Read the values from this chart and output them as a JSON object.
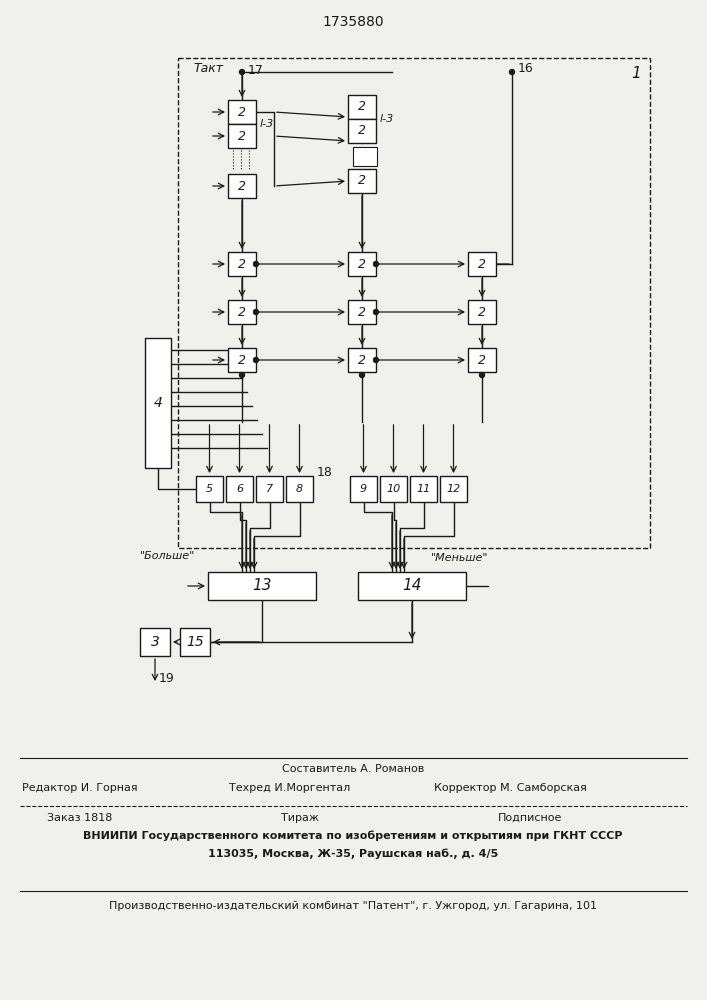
{
  "title": "1735880",
  "bg_color": "#f0f0ec",
  "line_color": "#1a1a1a",
  "box_color": "#ffffff",
  "label_takt": "Такт",
  "label_l3_1": "l-3",
  "label_l3_2": "l-3",
  "label_bolshe": "\"Больше\"",
  "label_menshe": "\"Меньше\"",
  "node1_label": "1",
  "node2_label": "2",
  "node3_label": "3",
  "node4_label": "4",
  "node5_label": "5",
  "node6_label": "6",
  "node7_label": "7",
  "node8_label": "8",
  "node9_label": "9",
  "node10_label": "10",
  "node11_label": "11",
  "node12_label": "12",
  "node13_label": "13",
  "node14_label": "14",
  "node15_label": "15",
  "node16_label": "16",
  "node17_label": "17",
  "node18_label": "18",
  "node19_label": "19",
  "footer_line1": "Составитель А. Романов",
  "footer_line2_left": "Редактор И. Горная",
  "footer_line2_mid": "Техред И.Моргентал",
  "footer_line2_right": "Корректор М. Самборская",
  "footer_line3_left": "Заказ 1818",
  "footer_line3_mid": "Тираж",
  "footer_line3_right": "Подписное",
  "footer_line4": "ВНИИПИ Государственного комитета по изобретениям и открытиям при ГКНТ СССР",
  "footer_line5": "113035, Москва, Ж-35, Раушская наб., д. 4/5",
  "footer_line6": "Производственно-издательский комбинат \"Патент\", г. Ужгород, ул. Гагарина, 101"
}
